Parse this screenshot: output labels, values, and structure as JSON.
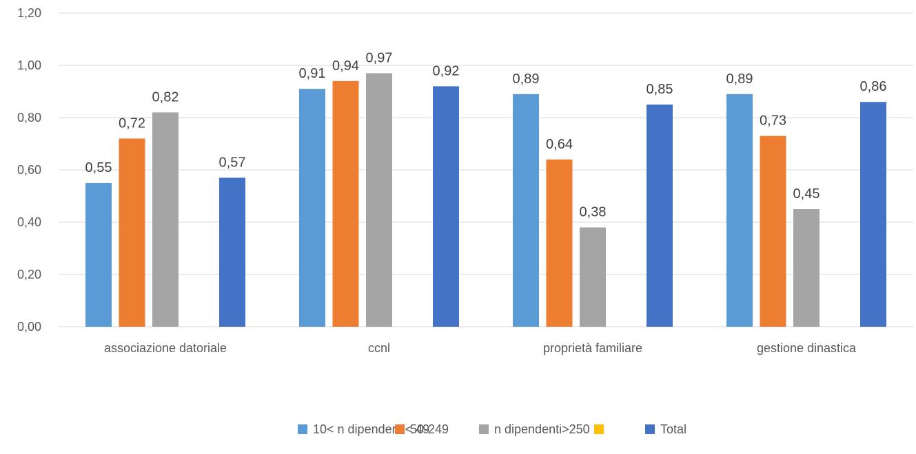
{
  "chart_data": {
    "type": "bar",
    "categories": [
      "associazione datoriale",
      "ccnl",
      "proprietà familiare",
      "gestione dinastica"
    ],
    "series": [
      {
        "name": "10< n dipendenti< 49",
        "color": "#5B9BD5",
        "values": [
          0.55,
          0.91,
          0.89,
          0.89
        ],
        "labels": [
          "0,55",
          "0,91",
          "0,89",
          "0,89"
        ]
      },
      {
        "name": "50-249",
        "color": "#ED7D31",
        "values": [
          0.72,
          0.94,
          0.64,
          0.73
        ],
        "labels": [
          "0,72",
          "0,94",
          "0,64",
          "0,73"
        ]
      },
      {
        "name": "n dipendenti>250",
        "color": "#A5A5A5",
        "values": [
          0.82,
          0.97,
          0.38,
          0.45
        ],
        "labels": [
          "0,82",
          "0,97",
          "0,38",
          "0,45"
        ]
      },
      {
        "name": "",
        "color": "#FFC000",
        "values": [
          null,
          null,
          null,
          null
        ],
        "labels": [
          "",
          "",
          "",
          ""
        ]
      },
      {
        "name": "Total",
        "color": "#4472C4",
        "values": [
          0.57,
          0.92,
          0.85,
          0.86
        ],
        "labels": [
          "0,57",
          "0,92",
          "0,85",
          "0,86"
        ]
      }
    ],
    "ylim": [
      0,
      1.2
    ],
    "yticks": [
      0,
      0.2,
      0.4,
      0.6,
      0.8,
      1.0,
      1.2
    ],
    "ytick_labels": [
      "0,00",
      "0,20",
      "0,40",
      "0,60",
      "0,80",
      "1,00",
      "1,20"
    ],
    "title": "",
    "xlabel": "",
    "ylabel": "",
    "grid": true,
    "legend_position": "bottom"
  }
}
